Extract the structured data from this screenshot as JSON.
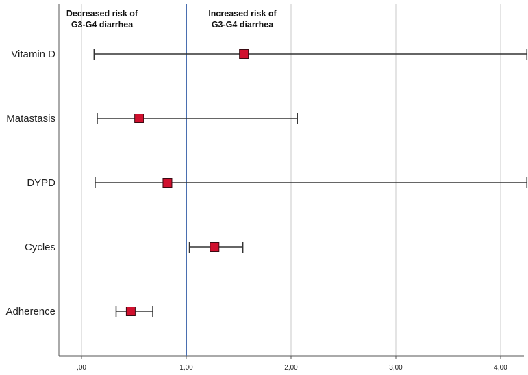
{
  "chart_data": {
    "type": "forest",
    "title": "",
    "xlabel": "",
    "ylabel": "",
    "xlim": [
      -0.2,
      4.25
    ],
    "reference_line": 1.0,
    "xticks": [
      {
        "value": 0,
        "label": ",00"
      },
      {
        "value": 1,
        "label": "1,00"
      },
      {
        "value": 2,
        "label": "2,00"
      },
      {
        "value": 3,
        "label": "3,00"
      },
      {
        "value": 4,
        "label": "4,00"
      }
    ],
    "grid": true,
    "rows": [
      {
        "label": "Vitamin D",
        "estimate": 1.55,
        "lower": 0.12,
        "upper": 4.25,
        "upper_truncated": true
      },
      {
        "label": "Matastasis",
        "estimate": 0.55,
        "lower": 0.15,
        "upper": 2.06,
        "upper_truncated": false
      },
      {
        "label": "DYPD",
        "estimate": 0.82,
        "lower": 0.13,
        "upper": 4.25,
        "upper_truncated": true
      },
      {
        "label": "Cycles",
        "estimate": 1.27,
        "lower": 1.03,
        "upper": 1.54,
        "upper_truncated": false
      },
      {
        "label": "Adherence",
        "estimate": 0.47,
        "lower": 0.33,
        "upper": 0.68,
        "upper_truncated": false
      }
    ],
    "annotations": {
      "left_line1": "Decreased risk of",
      "left_line2": "G3-G4 diarrhea",
      "right_line1": "Increased risk of",
      "right_line2": "G3-G4 diarrhea"
    },
    "colors": {
      "marker": "#d0102e",
      "reference_line": "#4a6fb0",
      "whisker": "#333333",
      "grid": "#c8c8c8"
    }
  }
}
